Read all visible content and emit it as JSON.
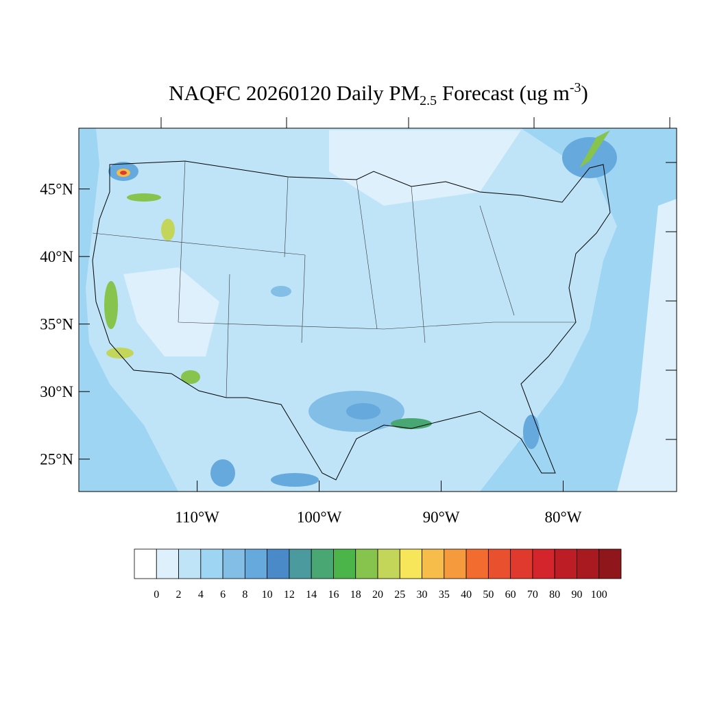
{
  "map": {
    "title": {
      "main": "NAQFC 20260120 Daily PM",
      "sub": "2.5",
      "middle": " Forecast (ug m",
      "sup": "-3",
      "end": ")"
    },
    "lat_range": [
      22.6,
      49.5
    ],
    "lon_range": [
      -119.7,
      -70.7
    ],
    "lat_ticks": [
      {
        "value": 45,
        "label": "45°N"
      },
      {
        "value": 40,
        "label": "40°N"
      },
      {
        "value": 35,
        "label": "35°N"
      },
      {
        "value": 30,
        "label": "30°N"
      },
      {
        "value": 25,
        "label": "25°N"
      }
    ],
    "lon_ticks": [
      {
        "value": -110,
        "label": "110°W"
      },
      {
        "value": -100,
        "label": "100°W"
      },
      {
        "value": -90,
        "label": "90°W"
      },
      {
        "value": -80,
        "label": "80°W"
      }
    ],
    "colorbar": {
      "colors": [
        "#ffffff",
        "#ddf0fb",
        "#bfe4f7",
        "#9dd5f3",
        "#82bee6",
        "#66a9dc",
        "#4a8ac8",
        "#4a9a9e",
        "#48a773",
        "#4cb54a",
        "#86c44e",
        "#c4d65a",
        "#f7e55a",
        "#f7bd4a",
        "#f59a3d",
        "#f26b2f",
        "#e8502e",
        "#e03a2e",
        "#d4242c",
        "#bd1e26",
        "#a81a20",
        "#8f161a"
      ],
      "labels": [
        0,
        2,
        4,
        6,
        8,
        10,
        12,
        14,
        16,
        18,
        20,
        25,
        30,
        35,
        40,
        50,
        60,
        70,
        80,
        90,
        100
      ]
    }
  }
}
